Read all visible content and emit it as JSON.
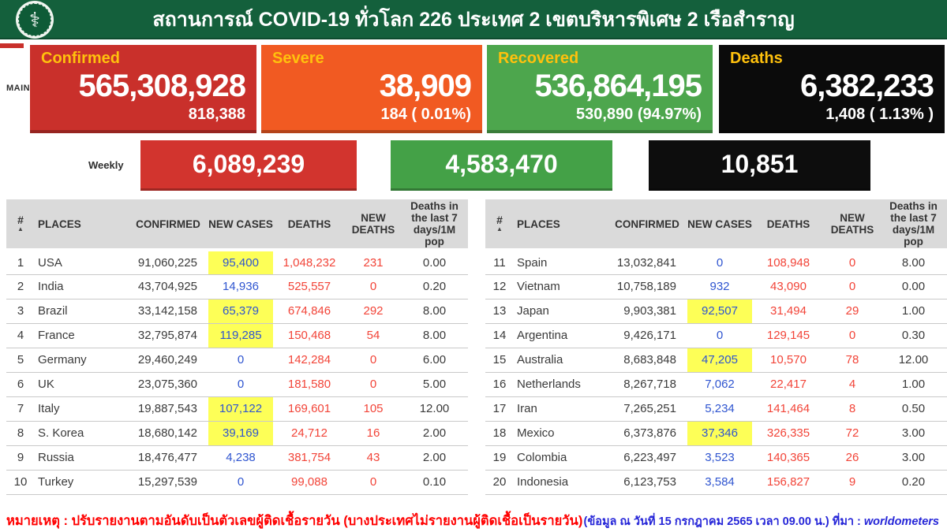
{
  "header": {
    "title": "สถานการณ์ COVID-19 ทั่วโลก 226 ประเทศ 2 เขตบริหารพิเศษ 2 เรือสำราญ",
    "logo_icon": "moph-caduceus-seal"
  },
  "summary": {
    "main_label": "MAIN",
    "cards": [
      {
        "id": "confirmed",
        "label": "Confirmed",
        "value": "565,308,928",
        "sub_value": "818,388",
        "color": "#C9302B"
      },
      {
        "id": "severe",
        "label": "Severe",
        "value": "38,909",
        "sub_value": "184 ( 0.01%)",
        "color": "#F15A22"
      },
      {
        "id": "recovered",
        "label": "Recovered",
        "value": "536,864,195",
        "sub_value": "530,890 (94.97%)",
        "color": "#4DA64D"
      },
      {
        "id": "deaths",
        "label": "Deaths",
        "value": "6,382,233",
        "sub_value": "1,408 ( 1.13% )",
        "color": "#0B0B0B"
      }
    ]
  },
  "weekly": {
    "label": "Weekly",
    "confirmed": "6,089,239",
    "recovered": "4,583,470",
    "deaths": "10,851"
  },
  "tables": {
    "rank_header": "#",
    "sort_arrow": "▲",
    "headers": [
      "PLACES",
      "CONFIRMED",
      "NEW CASES",
      "DEATHS",
      "NEW DEATHS",
      "Deaths in the last 7 days/1M pop"
    ],
    "left_rows": [
      {
        "rank": "1",
        "place": "USA",
        "confirmed": "91,060,225",
        "new_cases": "95,400",
        "new_cases_highlight": true,
        "deaths": "1,048,232",
        "new_deaths": "231",
        "deaths_7d_per_1m": "0.00"
      },
      {
        "rank": "2",
        "place": "India",
        "confirmed": "43,704,925",
        "new_cases": "14,936",
        "new_cases_highlight": false,
        "deaths": "525,557",
        "new_deaths": "0",
        "deaths_7d_per_1m": "0.20"
      },
      {
        "rank": "3",
        "place": "Brazil",
        "confirmed": "33,142,158",
        "new_cases": "65,379",
        "new_cases_highlight": true,
        "deaths": "674,846",
        "new_deaths": "292",
        "deaths_7d_per_1m": "8.00"
      },
      {
        "rank": "4",
        "place": "France",
        "confirmed": "32,795,874",
        "new_cases": "119,285",
        "new_cases_highlight": true,
        "deaths": "150,468",
        "new_deaths": "54",
        "deaths_7d_per_1m": "8.00"
      },
      {
        "rank": "5",
        "place": "Germany",
        "confirmed": "29,460,249",
        "new_cases": "0",
        "new_cases_highlight": false,
        "deaths": "142,284",
        "new_deaths": "0",
        "deaths_7d_per_1m": "6.00"
      },
      {
        "rank": "6",
        "place": "UK",
        "confirmed": "23,075,360",
        "new_cases": "0",
        "new_cases_highlight": false,
        "deaths": "181,580",
        "new_deaths": "0",
        "deaths_7d_per_1m": "5.00"
      },
      {
        "rank": "7",
        "place": "Italy",
        "confirmed": "19,887,543",
        "new_cases": "107,122",
        "new_cases_highlight": true,
        "deaths": "169,601",
        "new_deaths": "105",
        "deaths_7d_per_1m": "12.00"
      },
      {
        "rank": "8",
        "place": "S. Korea",
        "confirmed": "18,680,142",
        "new_cases": "39,169",
        "new_cases_highlight": true,
        "deaths": "24,712",
        "new_deaths": "16",
        "deaths_7d_per_1m": "2.00"
      },
      {
        "rank": "9",
        "place": "Russia",
        "confirmed": "18,476,477",
        "new_cases": "4,238",
        "new_cases_highlight": false,
        "deaths": "381,754",
        "new_deaths": "43",
        "deaths_7d_per_1m": "2.00"
      },
      {
        "rank": "10",
        "place": "Turkey",
        "confirmed": "15,297,539",
        "new_cases": "0",
        "new_cases_highlight": false,
        "deaths": "99,088",
        "new_deaths": "0",
        "deaths_7d_per_1m": "0.10"
      }
    ],
    "right_rows": [
      {
        "rank": "11",
        "place": "Spain",
        "confirmed": "13,032,841",
        "new_cases": "0",
        "new_cases_highlight": false,
        "deaths": "108,948",
        "new_deaths": "0",
        "deaths_7d_per_1m": "8.00"
      },
      {
        "rank": "12",
        "place": "Vietnam",
        "confirmed": "10,758,189",
        "new_cases": "932",
        "new_cases_highlight": false,
        "deaths": "43,090",
        "new_deaths": "0",
        "deaths_7d_per_1m": "0.00"
      },
      {
        "rank": "13",
        "place": "Japan",
        "confirmed": "9,903,381",
        "new_cases": "92,507",
        "new_cases_highlight": true,
        "deaths": "31,494",
        "new_deaths": "29",
        "deaths_7d_per_1m": "1.00"
      },
      {
        "rank": "14",
        "place": "Argentina",
        "confirmed": "9,426,171",
        "new_cases": "0",
        "new_cases_highlight": false,
        "deaths": "129,145",
        "new_deaths": "0",
        "deaths_7d_per_1m": "0.30"
      },
      {
        "rank": "15",
        "place": "Australia",
        "confirmed": "8,683,848",
        "new_cases": "47,205",
        "new_cases_highlight": true,
        "deaths": "10,570",
        "new_deaths": "78",
        "deaths_7d_per_1m": "12.00"
      },
      {
        "rank": "16",
        "place": "Netherlands",
        "confirmed": "8,267,718",
        "new_cases": "7,062",
        "new_cases_highlight": false,
        "deaths": "22,417",
        "new_deaths": "4",
        "deaths_7d_per_1m": "1.00"
      },
      {
        "rank": "17",
        "place": "Iran",
        "confirmed": "7,265,251",
        "new_cases": "5,234",
        "new_cases_highlight": false,
        "deaths": "141,464",
        "new_deaths": "8",
        "deaths_7d_per_1m": "0.50"
      },
      {
        "rank": "18",
        "place": "Mexico",
        "confirmed": "6,373,876",
        "new_cases": "37,346",
        "new_cases_highlight": true,
        "deaths": "326,335",
        "new_deaths": "72",
        "deaths_7d_per_1m": "3.00"
      },
      {
        "rank": "19",
        "place": "Colombia",
        "confirmed": "6,223,497",
        "new_cases": "3,523",
        "new_cases_highlight": false,
        "deaths": "140,365",
        "new_deaths": "26",
        "deaths_7d_per_1m": "3.00"
      },
      {
        "rank": "20",
        "place": "Indonesia",
        "confirmed": "6,123,753",
        "new_cases": "3,584",
        "new_cases_highlight": false,
        "deaths": "156,827",
        "new_deaths": "9",
        "deaths_7d_per_1m": "0.20"
      }
    ]
  },
  "footer": {
    "note": "หมายเหตุ : ปรับรายงานตามอันดับเป็นตัวเลขผู้ติดเชื้อรายวัน (บางประเทศไม่รายงานผู้ติดเชื้อเป็นรายวัน)",
    "source_prefix": "(ข้อมูล ณ วันที่ 15 กรกฎาคม 2565 เวลา 09.00 น.) ที่มา : ",
    "source_name": "worldometers"
  },
  "colors": {
    "header_green": "#14603C",
    "confirmed_red": "#C9302B",
    "severe_orange": "#F15A22",
    "recovered_green": "#4DA64D",
    "deaths_black": "#0B0B0B",
    "accent_gold": "#FFC10D",
    "weekly_red": "#D2342E",
    "weekly_green": "#44A147",
    "weekly_black": "#0D0D0D",
    "new_cases_blue": "#2F55D0",
    "deaths_text_red": "#F24438",
    "highlight_yellow": "#FDFF57",
    "table_header_gray": "#DADADA",
    "note_red": "#FF0000",
    "source_blue": "#2626D8"
  }
}
